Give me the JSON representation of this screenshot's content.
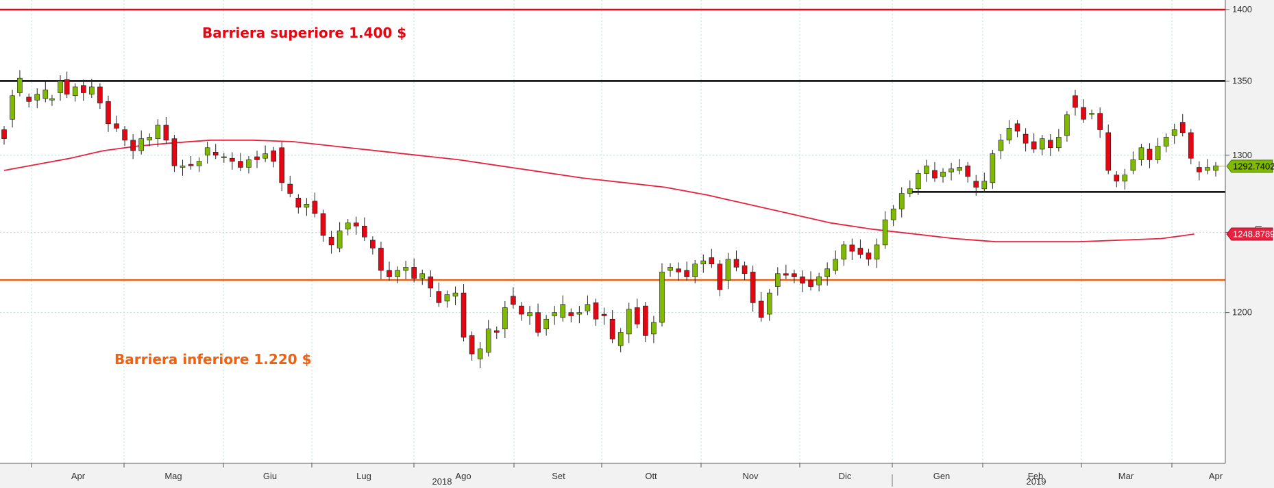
{
  "chart_data": {
    "type": "candlestick",
    "scale": "log",
    "scale_label": "Log",
    "ylim": [
      1160,
      1400
    ],
    "y_ticks": [
      1200,
      1250,
      1300,
      1350,
      1400
    ],
    "y_tick_labels": [
      "1200",
      "",
      "1300",
      "1350",
      "1400"
    ],
    "x_month_labels": [
      "Apr",
      "Mag",
      "Giu",
      "Lug",
      "Ago",
      "Set",
      "Ott",
      "Nov",
      "Dic",
      "Gen",
      "Feb",
      "Mar",
      "Apr"
    ],
    "x_year_labels": [
      "2018",
      "2019"
    ],
    "colors": {
      "up": "#7fba00",
      "down": "#e30613",
      "wick": "#222222",
      "moving_average": "#e8213e",
      "upper_barrier": "#e30613",
      "lower_barrier": "#f06010",
      "resistance": "#000000",
      "grid": "#b8dbd7"
    },
    "annotations": {
      "upper_barrier_label": "Barriera superiore 1.400 $",
      "lower_barrier_label": "Barriera inferiore 1.220 $"
    },
    "levels": {
      "upper_barrier": 1400,
      "resistance": 1350,
      "support": 1276,
      "lower_barrier": 1220
    },
    "last_price": {
      "value": 1292.7402,
      "label": "1292.7402"
    },
    "moving_average_last": {
      "value": 1248.8789,
      "label": "1248.8789"
    },
    "moving_average": [
      [
        0,
        1290
      ],
      [
        40,
        1294
      ],
      [
        80,
        1298
      ],
      [
        120,
        1303
      ],
      [
        160,
        1306
      ],
      [
        200,
        1308
      ],
      [
        250,
        1310
      ],
      [
        300,
        1310
      ],
      [
        350,
        1309
      ],
      [
        400,
        1306
      ],
      [
        450,
        1303
      ],
      [
        500,
        1300
      ],
      [
        550,
        1297
      ],
      [
        600,
        1293
      ],
      [
        650,
        1289
      ],
      [
        700,
        1285
      ],
      [
        750,
        1282
      ],
      [
        800,
        1279
      ],
      [
        850,
        1274
      ],
      [
        900,
        1268
      ],
      [
        950,
        1262
      ],
      [
        1000,
        1256
      ],
      [
        1050,
        1252
      ],
      [
        1100,
        1249
      ],
      [
        1150,
        1246
      ],
      [
        1200,
        1244
      ],
      [
        1250,
        1244
      ],
      [
        1300,
        1244
      ],
      [
        1350,
        1245
      ],
      [
        1400,
        1246
      ],
      [
        1440,
        1248.9
      ]
    ],
    "candles": [
      [
        0,
        1317,
        1311
      ],
      [
        10,
        1324,
        1340
      ],
      [
        19,
        1342,
        1352
      ],
      [
        30,
        1339,
        1336
      ],
      [
        40,
        1337,
        1341
      ],
      [
        50,
        1338,
        1344
      ],
      [
        58,
        1337,
        1338
      ],
      [
        68,
        1342,
        1350
      ],
      [
        76,
        1351,
        1341
      ],
      [
        86,
        1340,
        1346
      ],
      [
        96,
        1347,
        1342
      ],
      [
        106,
        1341,
        1346
      ],
      [
        116,
        1346,
        1335
      ],
      [
        126,
        1336,
        1321
      ],
      [
        136,
        1321,
        1318
      ],
      [
        146,
        1317,
        1310
      ],
      [
        156,
        1310,
        1303
      ],
      [
        166,
        1303,
        1311
      ],
      [
        176,
        1310,
        1312
      ],
      [
        186,
        1311,
        1320
      ],
      [
        196,
        1320,
        1310
      ],
      [
        206,
        1311,
        1293
      ],
      [
        216,
        1292,
        1293
      ],
      [
        226,
        1294,
        1293
      ],
      [
        236,
        1293,
        1296
      ],
      [
        246,
        1300,
        1305
      ],
      [
        256,
        1302,
        1300
      ],
      [
        266,
        1299,
        1299
      ],
      [
        276,
        1298,
        1296
      ],
      [
        286,
        1296,
        1292
      ],
      [
        296,
        1292,
        1297
      ],
      [
        306,
        1299,
        1297
      ],
      [
        316,
        1298,
        1301
      ],
      [
        326,
        1303,
        1296
      ],
      [
        336,
        1305,
        1282
      ],
      [
        346,
        1281,
        1275
      ],
      [
        356,
        1272,
        1266
      ],
      [
        366,
        1266,
        1268
      ],
      [
        376,
        1270,
        1262
      ],
      [
        386,
        1262,
        1248
      ],
      [
        396,
        1247,
        1242
      ],
      [
        406,
        1240,
        1251
      ],
      [
        416,
        1252,
        1256
      ],
      [
        426,
        1256,
        1254
      ],
      [
        436,
        1254,
        1247
      ],
      [
        446,
        1245,
        1240
      ],
      [
        456,
        1240,
        1226
      ],
      [
        466,
        1226,
        1222
      ],
      [
        476,
        1222,
        1226
      ],
      [
        486,
        1226,
        1228
      ],
      [
        496,
        1228,
        1221
      ],
      [
        506,
        1221,
        1224
      ],
      [
        516,
        1222,
        1215
      ],
      [
        526,
        1213,
        1206
      ],
      [
        536,
        1207,
        1211
      ],
      [
        546,
        1210,
        1212
      ],
      [
        556,
        1212,
        1185
      ],
      [
        566,
        1186,
        1175
      ],
      [
        576,
        1172,
        1178
      ],
      [
        586,
        1176,
        1190
      ],
      [
        596,
        1189,
        1188
      ],
      [
        606,
        1190,
        1203
      ],
      [
        616,
        1210,
        1205
      ],
      [
        626,
        1204,
        1199
      ],
      [
        636,
        1198,
        1200
      ],
      [
        646,
        1200,
        1188
      ],
      [
        656,
        1190,
        1196
      ],
      [
        666,
        1198,
        1200
      ],
      [
        676,
        1197,
        1205
      ],
      [
        686,
        1200,
        1198
      ],
      [
        696,
        1199,
        1200
      ],
      [
        706,
        1201,
        1205
      ],
      [
        716,
        1206,
        1196
      ],
      [
        726,
        1199,
        1198
      ],
      [
        736,
        1196,
        1184
      ],
      [
        746,
        1180,
        1188
      ],
      [
        756,
        1187,
        1202
      ],
      [
        766,
        1203,
        1193
      ],
      [
        776,
        1204,
        1186
      ],
      [
        786,
        1187,
        1194
      ],
      [
        796,
        1194,
        1225
      ],
      [
        806,
        1226,
        1228
      ],
      [
        816,
        1227,
        1225
      ],
      [
        826,
        1226,
        1222
      ],
      [
        836,
        1222,
        1230
      ],
      [
        846,
        1230,
        1232
      ],
      [
        856,
        1234,
        1230
      ],
      [
        866,
        1230,
        1214
      ],
      [
        876,
        1220,
        1233
      ],
      [
        886,
        1233,
        1228
      ],
      [
        896,
        1229,
        1224
      ],
      [
        906,
        1225,
        1206
      ],
      [
        916,
        1207,
        1197
      ],
      [
        926,
        1199,
        1212
      ],
      [
        936,
        1216,
        1224
      ],
      [
        946,
        1224,
        1223
      ],
      [
        956,
        1224,
        1222
      ],
      [
        966,
        1222,
        1218
      ],
      [
        976,
        1220,
        1216
      ],
      [
        986,
        1217,
        1222
      ],
      [
        996,
        1222,
        1227
      ],
      [
        1006,
        1226,
        1233
      ],
      [
        1016,
        1233,
        1242
      ],
      [
        1026,
        1242,
        1238
      ],
      [
        1036,
        1240,
        1236
      ],
      [
        1046,
        1237,
        1233
      ],
      [
        1056,
        1233,
        1242
      ],
      [
        1066,
        1242,
        1258
      ],
      [
        1076,
        1258,
        1265
      ],
      [
        1086,
        1265,
        1275
      ],
      [
        1096,
        1275,
        1278
      ],
      [
        1106,
        1278,
        1288
      ],
      [
        1116,
        1288,
        1293
      ],
      [
        1126,
        1290,
        1285
      ],
      [
        1136,
        1286,
        1289
      ],
      [
        1146,
        1289,
        1291
      ],
      [
        1156,
        1290,
        1292
      ],
      [
        1166,
        1293,
        1286
      ],
      [
        1176,
        1283,
        1279
      ],
      [
        1186,
        1278,
        1283
      ],
      [
        1196,
        1282,
        1301
      ],
      [
        1206,
        1303,
        1310
      ],
      [
        1216,
        1310,
        1318
      ],
      [
        1226,
        1321,
        1316
      ],
      [
        1236,
        1314,
        1308
      ],
      [
        1246,
        1309,
        1304
      ],
      [
        1256,
        1304,
        1311
      ],
      [
        1266,
        1310,
        1305
      ],
      [
        1276,
        1305,
        1312
      ],
      [
        1286,
        1313,
        1327
      ],
      [
        1296,
        1340,
        1332
      ],
      [
        1306,
        1332,
        1324
      ],
      [
        1316,
        1328,
        1328
      ],
      [
        1326,
        1328,
        1317
      ],
      [
        1336,
        1315,
        1290
      ],
      [
        1346,
        1287,
        1283
      ],
      [
        1356,
        1283,
        1287
      ],
      [
        1366,
        1290,
        1297
      ],
      [
        1376,
        1297,
        1305
      ],
      [
        1386,
        1304,
        1297
      ],
      [
        1396,
        1297,
        1306
      ],
      [
        1406,
        1306,
        1312
      ],
      [
        1416,
        1313,
        1317
      ],
      [
        1426,
        1322,
        1315
      ],
      [
        1436,
        1315,
        1298
      ],
      [
        1446,
        1292,
        1289
      ],
      [
        1456,
        1290,
        1292
      ],
      [
        1466,
        1290,
        1293
      ]
    ]
  }
}
